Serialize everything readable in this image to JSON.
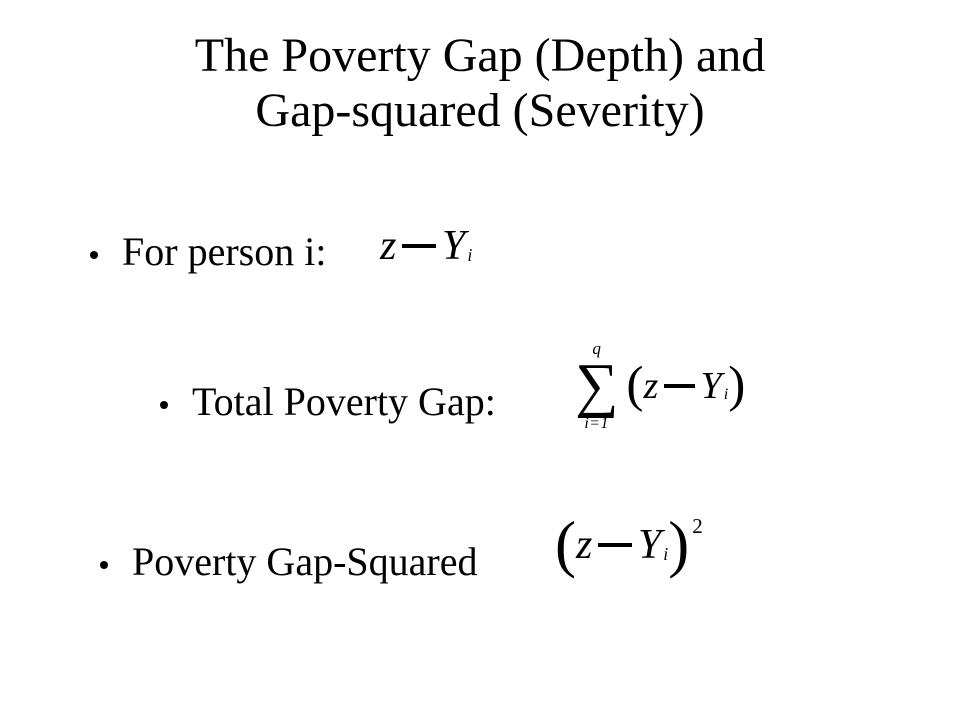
{
  "title_line1": "The Poverty Gap (Depth) and",
  "title_line2": "Gap-squared (Severity)",
  "bullets": {
    "b1": "For person i:",
    "b2": "Total Poverty Gap:",
    "b3": "Poverty Gap-Squared"
  },
  "formula1": {
    "z": "z",
    "Y": "Y",
    "sub": "i"
  },
  "formula2": {
    "sigma_top": "q",
    "sigma_bottom": "i=1",
    "z": "z",
    "Y": "Y",
    "sub": "i"
  },
  "formula3": {
    "z": "z",
    "Y": "Y",
    "sub": "i",
    "exp": "2"
  },
  "colors": {
    "background": "#ffffff",
    "text": "#000000"
  },
  "fonts": {
    "family": "Times New Roman",
    "title_size_pt": 48,
    "body_size_pt": 40
  }
}
